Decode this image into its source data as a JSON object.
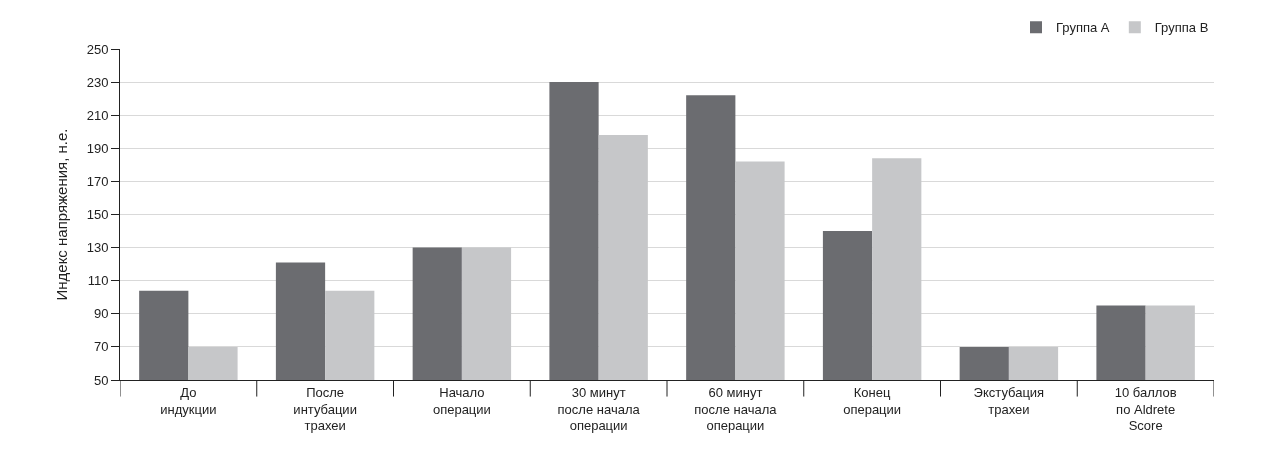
{
  "chart_data": {
    "type": "bar",
    "ylabel": "Индекс напряжения, н.е.",
    "categories": [
      "До\nиндукции",
      "После\nинтубации\nтрахеи",
      "Начало\nоперации",
      "30 минут\nпосле начала\nоперации",
      "60 минут\nпосле начала\nоперации",
      "Конец\nоперации",
      "Экстубация\nтрахеи",
      "10 баллов\nпо Aldrete\nScore"
    ],
    "series": [
      {
        "name": "Группа А",
        "color": "#6b6c70",
        "values": [
          104,
          121,
          130,
          230,
          222,
          140,
          70,
          95
        ]
      },
      {
        "name": "Группа В",
        "color": "#c6c7c9",
        "values": [
          70,
          104,
          130,
          198,
          182,
          184,
          70,
          95
        ]
      }
    ],
    "ylim": [
      50,
      250
    ],
    "yticks": [
      50,
      70,
      90,
      110,
      130,
      150,
      170,
      190,
      210,
      230,
      250
    ],
    "grid": "y",
    "legend": "top right"
  }
}
